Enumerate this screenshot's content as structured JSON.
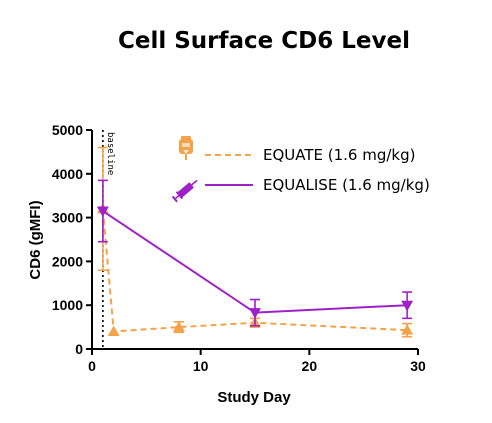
{
  "chart_data": {
    "type": "line",
    "title": "Cell Surface CD6 Level",
    "xlabel": "Study Day",
    "ylabel": "CD6 (gMFI)",
    "xlim": [
      0,
      30
    ],
    "ylim": [
      0,
      5000
    ],
    "x_ticks": [
      0,
      10,
      20,
      30
    ],
    "y_ticks": [
      0,
      1000,
      2000,
      3000,
      4000,
      5000
    ],
    "grid": false,
    "legend_placement": "top-right",
    "annotation": {
      "x": 1,
      "label": "baseline"
    },
    "series": [
      {
        "name": "EQUATE (1.6 mg/kg)",
        "color": "#F5A34B",
        "line_style": "dashed",
        "marker": "triangle-up",
        "icon": "iv-bag-icon",
        "x": [
          1,
          2,
          8,
          15,
          29
        ],
        "y": [
          3200,
          400,
          500,
          600,
          430
        ],
        "err": [
          1400,
          0,
          120,
          100,
          150
        ]
      },
      {
        "name": "EQUALISE (1.6 mg/kg)",
        "color": "#A020C8",
        "line_style": "solid",
        "marker": "triangle-down",
        "icon": "syringe-icon",
        "x": [
          1,
          15,
          29
        ],
        "y": [
          3150,
          830,
          1000
        ],
        "err": [
          700,
          300,
          300
        ]
      }
    ]
  }
}
